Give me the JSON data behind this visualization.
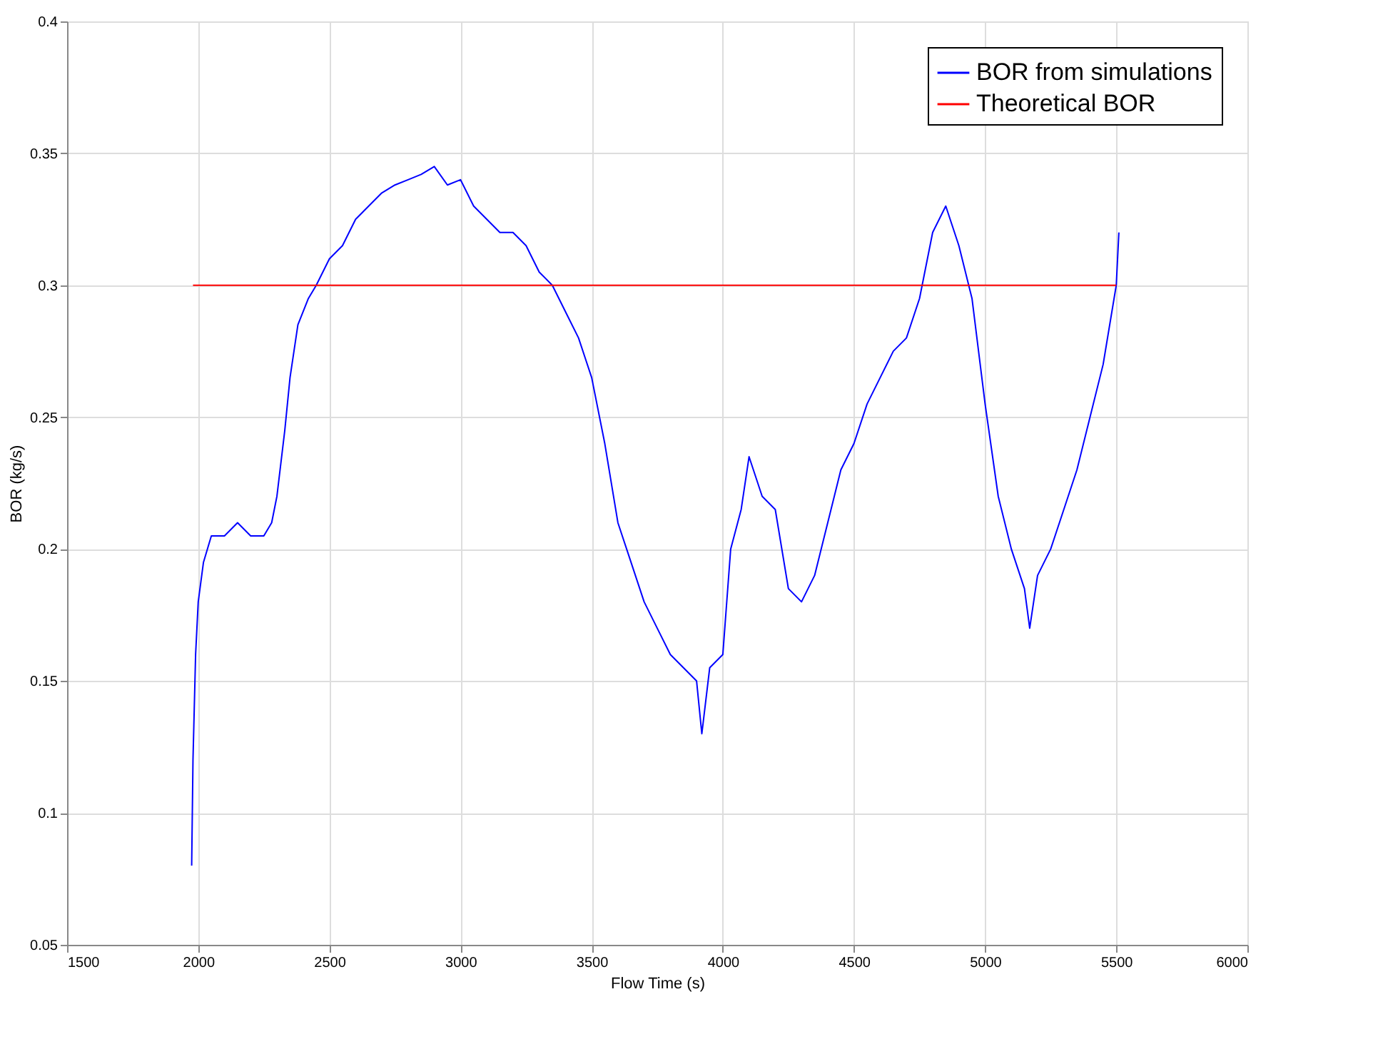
{
  "chart_data": {
    "type": "line",
    "xlabel": "Flow Time (s)",
    "ylabel": "BOR (kg/s)",
    "xlim": [
      1500,
      6000
    ],
    "xticks": [
      1500,
      2000,
      2500,
      3000,
      3500,
      4000,
      4500,
      5000,
      5500,
      6000
    ],
    "ylim": [
      0.05,
      0.4
    ],
    "yticks": [
      0.05,
      0.1,
      0.15,
      0.2,
      0.25,
      0.3,
      0.35,
      0.4
    ],
    "grid": true,
    "legend": "top right",
    "line_style": "solid",
    "marker": "none",
    "series": [
      {
        "name": "BOR from simulations",
        "color": "#0000ff",
        "x": [
          1975,
          1980,
          1990,
          2000,
          2020,
          2050,
          2100,
          2150,
          2200,
          2250,
          2280,
          2300,
          2330,
          2350,
          2380,
          2420,
          2450,
          2500,
          2550,
          2600,
          2650,
          2700,
          2750,
          2800,
          2850,
          2900,
          2950,
          3000,
          3050,
          3100,
          3150,
          3200,
          3250,
          3300,
          3350,
          3400,
          3450,
          3500,
          3550,
          3600,
          3650,
          3700,
          3750,
          3800,
          3850,
          3900,
          3920,
          3950,
          4000,
          4030,
          4070,
          4100,
          4150,
          4200,
          4250,
          4300,
          4350,
          4400,
          4450,
          4500,
          4550,
          4600,
          4650,
          4700,
          4750,
          4800,
          4850,
          4900,
          4950,
          5000,
          5050,
          5100,
          5150,
          5170,
          5200,
          5250,
          5300,
          5350,
          5400,
          5450,
          5500,
          5510
        ],
        "values": [
          0.08,
          0.12,
          0.16,
          0.18,
          0.195,
          0.205,
          0.205,
          0.21,
          0.205,
          0.205,
          0.21,
          0.22,
          0.245,
          0.265,
          0.285,
          0.295,
          0.3,
          0.31,
          0.315,
          0.325,
          0.33,
          0.335,
          0.338,
          0.34,
          0.342,
          0.345,
          0.338,
          0.34,
          0.33,
          0.325,
          0.32,
          0.32,
          0.315,
          0.305,
          0.3,
          0.29,
          0.28,
          0.265,
          0.24,
          0.21,
          0.195,
          0.18,
          0.17,
          0.16,
          0.155,
          0.15,
          0.13,
          0.155,
          0.16,
          0.2,
          0.215,
          0.235,
          0.22,
          0.215,
          0.185,
          0.18,
          0.19,
          0.21,
          0.23,
          0.24,
          0.255,
          0.265,
          0.275,
          0.28,
          0.295,
          0.32,
          0.33,
          0.315,
          0.295,
          0.255,
          0.22,
          0.2,
          0.185,
          0.17,
          0.19,
          0.2,
          0.215,
          0.23,
          0.25,
          0.27,
          0.3,
          0.32
        ]
      },
      {
        "name": "Theoretical BOR",
        "color": "#ff0000",
        "x": [
          1980,
          5500
        ],
        "values": [
          0.3,
          0.3
        ]
      }
    ]
  }
}
